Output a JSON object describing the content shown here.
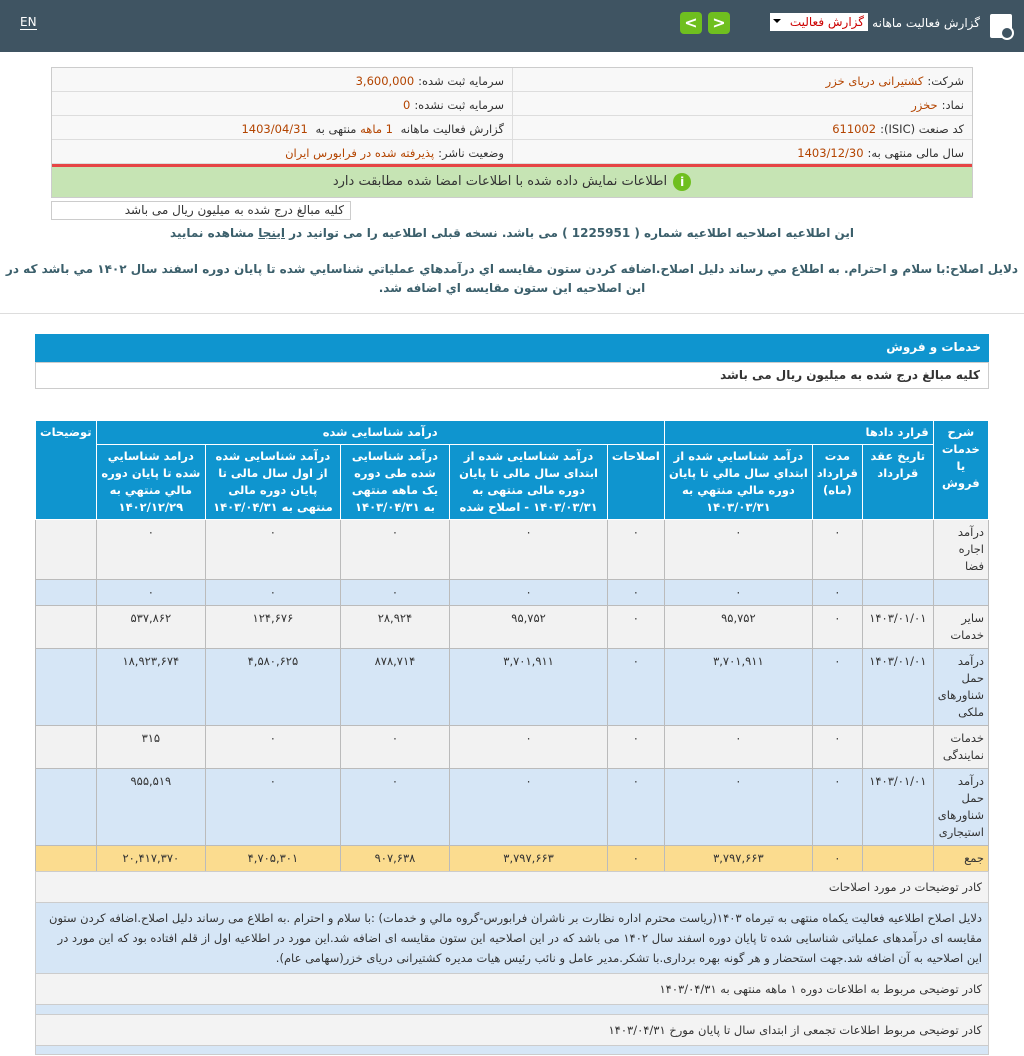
{
  "header": {
    "lang": "EN",
    "title": "گزارش فعالیت ماهانه",
    "select_value": "گزارش فعالیت",
    "prev": "<",
    "next": ">"
  },
  "info": {
    "company_label": "شرکت:",
    "company": "کشتیرانی دریای خزر",
    "symbol_label": "نماد:",
    "symbol": "حخزر",
    "isic_label": "کد صنعت (ISIC):",
    "isic": "611002",
    "fy_label": "سال مالی منتهی به:",
    "fy": "1403/12/30",
    "capital_label": "سرمایه ثبت شده:",
    "capital": "3,600,000",
    "unreg_label": "سرمایه ثبت نشده:",
    "unreg": "0",
    "report_label": "گزارش فعالیت ماهانه",
    "report_period": "1 ماهه",
    "report_mid": "منتهی به",
    "report_date": "1403/04/31",
    "status_label": "وضعیت ناشر:",
    "status": "پذیرفته شده در فرابورس ایران"
  },
  "verified": "اطلاعات نمایش داده شده با اطلاعات امضا شده مطابقت دارد",
  "unit_note": "کلیه مبالغ درج شده به میلیون ریال می باشد",
  "notice_pre": "این اطلاعیه اصلاحیه اطلاعیه شماره ( 1225951 ) می باشد. نسخه قبلی اطلاعیه را می توانید در",
  "notice_link": "اینجا",
  "notice_post": "مشاهده نمایید",
  "reason": "دلایل اصلاح:با سلام و احترام. به اطلاع مي رساند دليل اصلاح.اضافه کردن ستون مقايسه اي درآمدهاي عملياتي شناسايي شده تا پايان دوره اسفند سال ۱۴۰۲ مي باشد که در اين اصلاحيه اين ستون مقايسه اي اضافه شد.",
  "section": {
    "title": "خدمات و فروش",
    "unit": "کلیه مبالغ درج شده به میلیون ریال می باشد"
  },
  "table": {
    "h_desc": "شرح خدمات یا فروش",
    "h_contracts": "قرارد دادها",
    "h_recognized": "درآمد شناسایی شده",
    "h_notes": "توضیحات",
    "cols": [
      "تاریخ عقد قرارداد",
      "مدت قرارداد (ماه)",
      "درآمد شناسايي شده از ابتداي سال مالي تا پايان دوره مالي منتهي به ۱۴۰۳/۰۳/۳۱",
      "اصلاحات",
      "درآمد شناسایی شده از ابتدای سال مالی تا پایان دوره مالی منتهی به ۱۴۰۳/۰۳/۳۱ - اصلاح شده",
      "درآمد شناسایی شده طی دوره یک ماهه منتهی به ۱۴۰۳/۰۴/۳۱",
      "درآمد شناسایی شده از اول سال مالی تا پایان دوره مالی منتهی به ۱۴۰۳/۰۴/۳۱",
      "درامد شناسايي شده تا پايان دوره مالي منتهي به ۱۴۰۲/۱۲/۲۹"
    ],
    "rows": [
      {
        "c": [
          "درآمد اجاره فضا",
          "",
          "۰",
          "۰",
          "۰",
          "۰",
          "۰",
          "۰",
          "۰",
          ""
        ],
        "cls": "g"
      },
      {
        "c": [
          "",
          "",
          "۰",
          "۰",
          "۰",
          "۰",
          "۰",
          "۰",
          "۰",
          ""
        ],
        "cls": "b"
      },
      {
        "c": [
          "سایر خدمات",
          "۱۴۰۳/۰۱/۰۱",
          "۰",
          "۹۵,۷۵۲",
          "۰",
          "۹۵,۷۵۲",
          "۲۸,۹۲۴",
          "۱۲۴,۶۷۶",
          "۵۳۷,۸۶۲",
          ""
        ],
        "cls": "g"
      },
      {
        "c": [
          "درآمد حمل شناورهای ملکی",
          "۱۴۰۳/۰۱/۰۱",
          "۰",
          "۳,۷۰۱,۹۱۱",
          "۰",
          "۳,۷۰۱,۹۱۱",
          "۸۷۸,۷۱۴",
          "۴,۵۸۰,۶۲۵",
          "۱۸,۹۲۳,۶۷۴",
          ""
        ],
        "cls": "b"
      },
      {
        "c": [
          "خدمات نمایندگی",
          "",
          "۰",
          "۰",
          "۰",
          "۰",
          "۰",
          "۰",
          "۳۱۵",
          ""
        ],
        "cls": "g"
      },
      {
        "c": [
          "درآمد حمل شناورهای استیجاری",
          "۱۴۰۳/۰۱/۰۱",
          "۰",
          "۰",
          "۰",
          "۰",
          "۰",
          "۰",
          "۹۵۵,۵۱۹",
          ""
        ],
        "cls": "b"
      },
      {
        "c": [
          "جمع",
          "",
          "۰",
          "۳,۷۹۷,۶۶۳",
          "۰",
          "۳,۷۹۷,۶۶۳",
          "۹۰۷,۶۳۸",
          "۴,۷۰۵,۳۰۱",
          "۲۰,۴۱۷,۳۷۰",
          ""
        ],
        "cls": "y"
      }
    ]
  },
  "notes": {
    "h1": "کادر توضیحات در مورد اصلاحات",
    "b1": "دلایل اصلاح اطلاعیه فعالیت یکماه منتهی به تیرماه ۱۴۰۳(ریاست محترم اداره نظارت بر ناشران فرابورس-گروه مالي و خدمات) :با سلام و احترام .به اطلاع می رساند دلیل اصلاح.اضافه کردن ستون مقایسه ای درآمدهای عملیاتی شناسایی شده تا پایان دوره اسفند سال ۱۴۰۲ می باشد که در این اصلاحیه این ستون مقایسه ای اضافه شد.این مورد در اطلاعیه اول از قلم افتاده بود که این مورد در این اصلاحیه به آن اضافه شد.جهت استحضار و هر گونه بهره برداری.با تشکر.مدیر عامل و نائب رئیس هیات مدیره کشتیرانی دریای خزر(سهامی عام).",
    "h2": "کادر توضیحی مربوط به اطلاعات دوره ۱ ماهه منتهی به ۱۴۰۳/۰۴/۳۱",
    "h3": "کادر توضیحی مربوط اطلاعات تجمعی از ابتدای سال تا پایان مورخ ۱۴۰۳/۰۴/۳۱"
  },
  "colors": {
    "header": "#3f5462",
    "accent": "#0f95cf",
    "ok": "#c6e4b4",
    "total": "#fbdc8f",
    "alt": "#d6e6f6"
  }
}
